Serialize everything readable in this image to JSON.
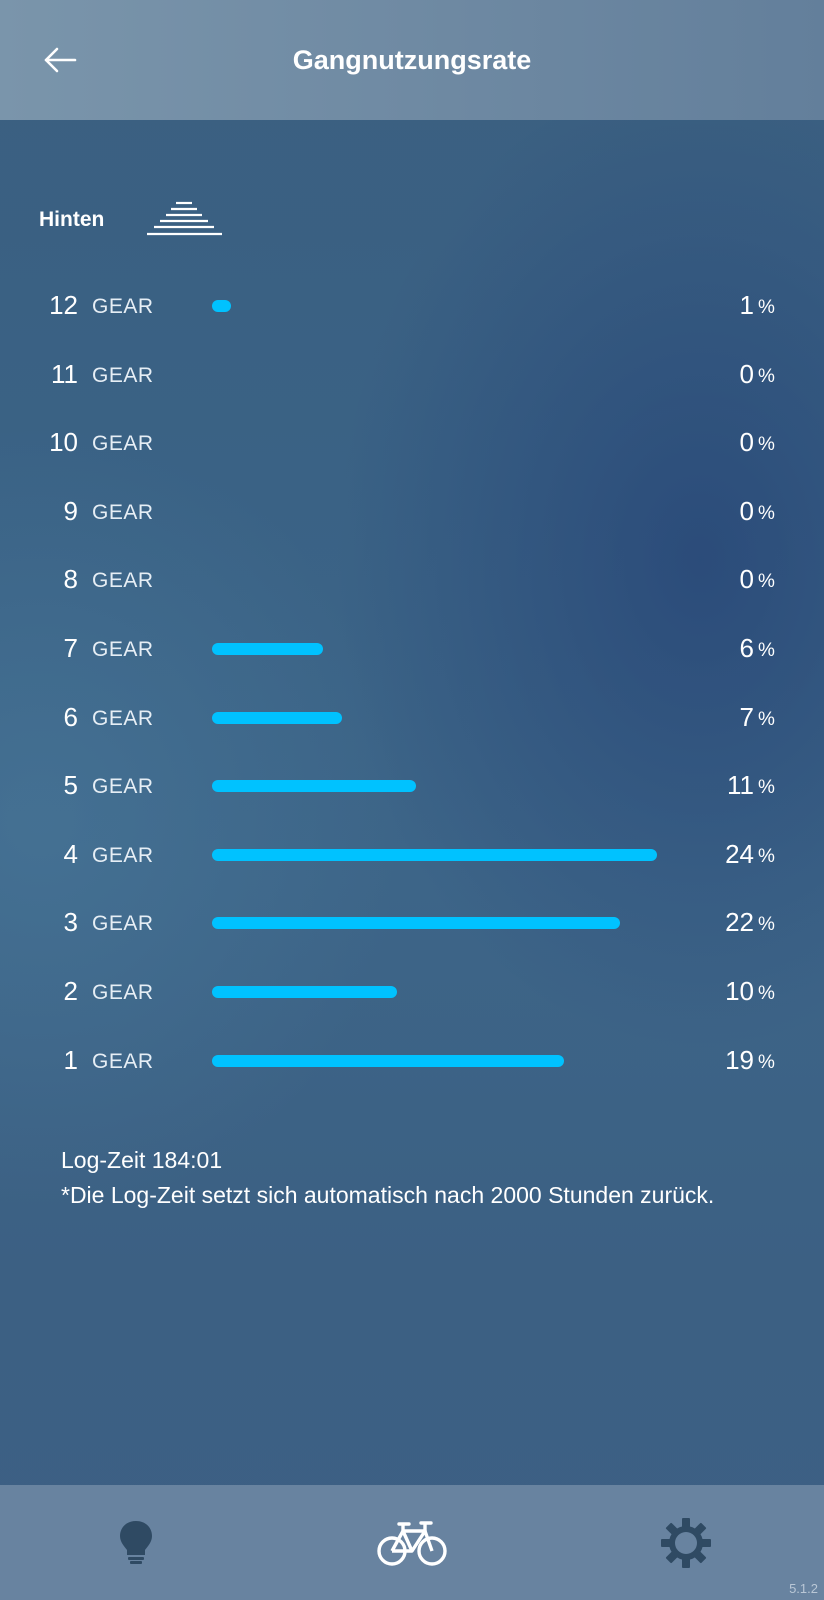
{
  "header": {
    "title": "Gangnutzungsrate",
    "back_icon": "arrow-left-icon"
  },
  "section": {
    "label": "Hinten",
    "icon": "rear-cassette-icon"
  },
  "colors": {
    "bar": "#00c2ff",
    "header_bg": "#6f8aa3",
    "nav_bg": "#6883a0",
    "active_nav_icon": "#ffffff",
    "inactive_nav_icon": "#2f4a63"
  },
  "gears": [
    {
      "num": "12",
      "label": "GEAR",
      "value": "1",
      "unit": "%",
      "percent": 1
    },
    {
      "num": "11",
      "label": "GEAR",
      "value": "0",
      "unit": "%",
      "percent": 0
    },
    {
      "num": "10",
      "label": "GEAR",
      "value": "0",
      "unit": "%",
      "percent": 0
    },
    {
      "num": "9",
      "label": "GEAR",
      "value": "0",
      "unit": "%",
      "percent": 0
    },
    {
      "num": "8",
      "label": "GEAR",
      "value": "0",
      "unit": "%",
      "percent": 0
    },
    {
      "num": "7",
      "label": "GEAR",
      "value": "6",
      "unit": "%",
      "percent": 6
    },
    {
      "num": "6",
      "label": "GEAR",
      "value": "7",
      "unit": "%",
      "percent": 7
    },
    {
      "num": "5",
      "label": "GEAR",
      "value": "11",
      "unit": "%",
      "percent": 11
    },
    {
      "num": "4",
      "label": "GEAR",
      "value": "24",
      "unit": "%",
      "percent": 24
    },
    {
      "num": "3",
      "label": "GEAR",
      "value": "22",
      "unit": "%",
      "percent": 22
    },
    {
      "num": "2",
      "label": "GEAR",
      "value": "10",
      "unit": "%",
      "percent": 10
    },
    {
      "num": "1",
      "label": "GEAR",
      "value": "19",
      "unit": "%",
      "percent": 19
    }
  ],
  "footnote": {
    "log_time": "Log-Zeit 184:01",
    "note": "*Die Log-Zeit setzt sich automatisch nach 2000 Stunden zurück."
  },
  "nav": {
    "items": [
      {
        "icon": "lightbulb-icon",
        "active": false
      },
      {
        "icon": "bicycle-icon",
        "active": true
      },
      {
        "icon": "gear-icon",
        "active": false
      }
    ]
  },
  "version": "5.1.2"
}
